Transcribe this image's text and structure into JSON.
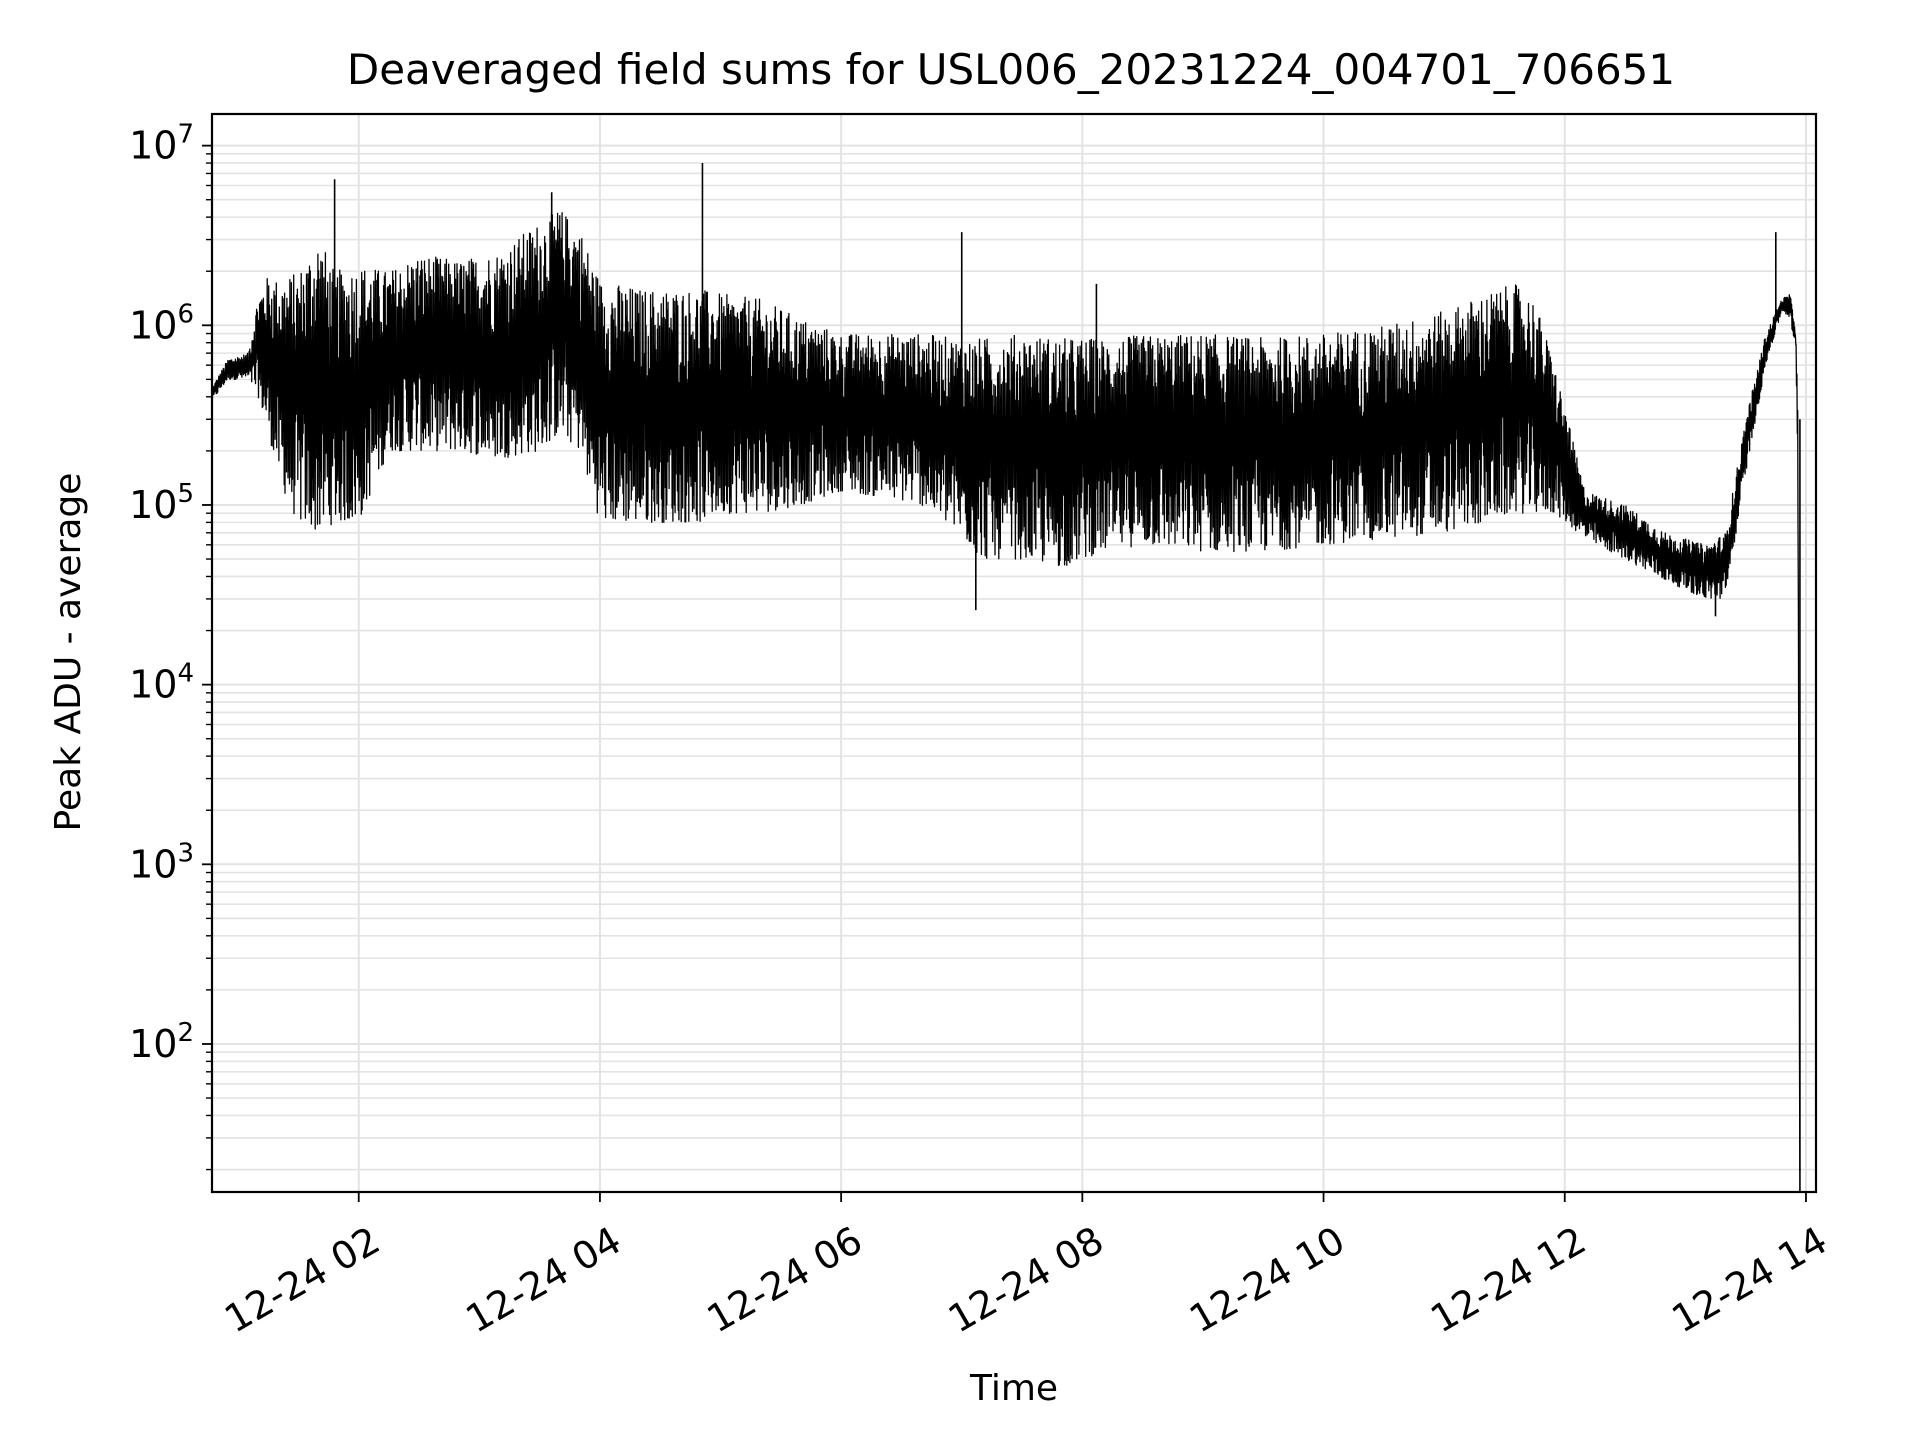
{
  "chart_data": {
    "type": "line",
    "title": "Deaveraged field sums for USL006_20231224_004701_706651",
    "xlabel": "Time",
    "ylabel": "Peak ADU - average",
    "yscale": "log",
    "grid": true,
    "grid_minor": true,
    "xlim": [
      "2023-12-24T00:47",
      "2023-12-24T14:05"
    ],
    "ylim": [
      15,
      15000000
    ],
    "x_ticks": [
      "12-24 02",
      "12-24 04",
      "12-24 06",
      "12-24 08",
      "12-24 10",
      "12-24 12",
      "12-24 14"
    ],
    "y_ticks": [
      {
        "base": "10",
        "exp": "2",
        "value": 100
      },
      {
        "base": "10",
        "exp": "3",
        "value": 1000
      },
      {
        "base": "10",
        "exp": "4",
        "value": 10000
      },
      {
        "base": "10",
        "exp": "5",
        "value": 100000
      },
      {
        "base": "10",
        "exp": "6",
        "value": 1000000
      },
      {
        "base": "10",
        "exp": "7",
        "value": 10000000
      }
    ],
    "line_color": "#000000",
    "series": [
      {
        "x": [
          "2023-12-24T00:47",
          "2023-12-24T00:55",
          "2023-12-24T01:05",
          "2023-12-24T01:10",
          "2023-12-24T01:15",
          "2023-12-24T01:20",
          "2023-12-24T01:25",
          "2023-12-24T01:30",
          "2023-12-24T01:40",
          "2023-12-24T01:48",
          "2023-12-24T02:00",
          "2023-12-24T02:15",
          "2023-12-24T02:30",
          "2023-12-24T02:50",
          "2023-12-24T03:10",
          "2023-12-24T03:30",
          "2023-12-24T03:40",
          "2023-12-24T03:50",
          "2023-12-24T04:00",
          "2023-12-24T04:20",
          "2023-12-24T04:40",
          "2023-12-24T04:50",
          "2023-12-24T05:00",
          "2023-12-24T05:20",
          "2023-12-24T05:40",
          "2023-12-24T06:00",
          "2023-12-24T06:20",
          "2023-12-24T06:40",
          "2023-12-24T06:58",
          "2023-12-24T07:10",
          "2023-12-24T07:30",
          "2023-12-24T07:50",
          "2023-12-24T08:10",
          "2023-12-24T08:30",
          "2023-12-24T09:00",
          "2023-12-24T09:30",
          "2023-12-24T10:00",
          "2023-12-24T10:30",
          "2023-12-24T11:00",
          "2023-12-24T11:20",
          "2023-12-24T11:35",
          "2023-12-24T11:45",
          "2023-12-24T11:55",
          "2023-12-24T12:10",
          "2023-12-24T12:30",
          "2023-12-24T12:50",
          "2023-12-24T13:10",
          "2023-12-24T13:20",
          "2023-12-24T13:30",
          "2023-12-24T13:40",
          "2023-12-24T13:48",
          "2023-12-24T13:52",
          "2023-12-24T13:55",
          "2023-12-24T13:56",
          "2023-12-24T13:57"
        ],
        "high": [
          450000,
          650000,
          700000,
          1500000,
          1900000,
          1800000,
          1900000,
          2000000,
          3200000,
          2000000,
          2200000,
          2000000,
          2500000,
          2300000,
          2600000,
          3800000,
          4500000,
          3500000,
          1800000,
          1600000,
          1600000,
          1600000,
          1500000,
          1400000,
          1100000,
          900000,
          900000,
          900000,
          850000,
          850000,
          900000,
          850000,
          850000,
          880000,
          900000,
          850000,
          900000,
          1000000,
          1200000,
          1500000,
          1700000,
          1400000,
          600000,
          120000,
          100000,
          70000,
          60000,
          70000,
          300000,
          900000,
          1400000,
          1500000,
          1000000,
          300000,
          20
        ],
        "low": [
          380000,
          500000,
          500000,
          400000,
          250000,
          150000,
          100000,
          80000,
          70000,
          80000,
          80000,
          200000,
          200000,
          200000,
          180000,
          200000,
          250000,
          200000,
          80000,
          80000,
          80000,
          80000,
          90000,
          90000,
          100000,
          120000,
          110000,
          100000,
          70000,
          50000,
          50000,
          45000,
          55000,
          60000,
          55000,
          55000,
          60000,
          65000,
          70000,
          80000,
          90000,
          90000,
          90000,
          65000,
          50000,
          38000,
          30000,
          30000,
          150000,
          600000,
          1200000,
          1100000,
          700000,
          100000,
          15
        ],
        "spikes": [
          {
            "x": "2023-12-24T01:48",
            "y": 6500000
          },
          {
            "x": "2023-12-24T03:36",
            "y": 5500000
          },
          {
            "x": "2023-12-24T04:51",
            "y": 8000000
          },
          {
            "x": "2023-12-24T07:00",
            "y": 3300000
          },
          {
            "x": "2023-12-24T08:07",
            "y": 1700000
          },
          {
            "x": "2023-12-24T13:45",
            "y": 3300000
          },
          {
            "x": "2023-12-24T07:07",
            "y": 26000
          },
          {
            "x": "2023-12-24T13:15",
            "y": 24000
          }
        ]
      }
    ]
  }
}
